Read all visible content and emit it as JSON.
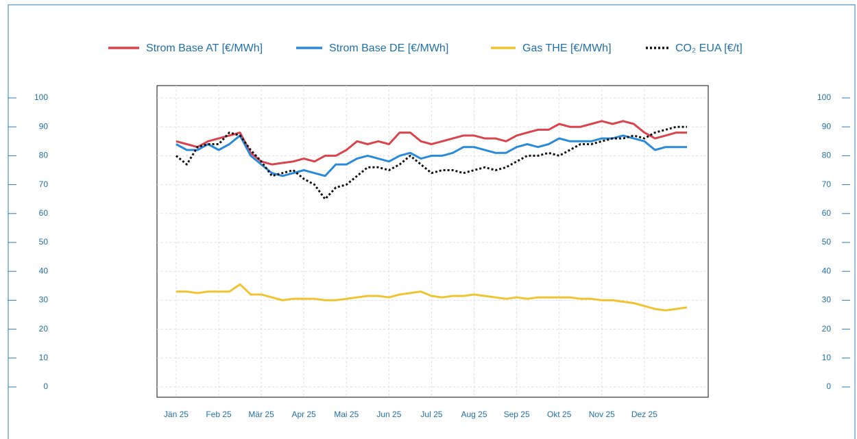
{
  "chart_data": {
    "type": "line",
    "x": [
      0,
      0.25,
      0.5,
      0.75,
      1,
      1.25,
      1.5,
      1.75,
      2,
      2.25,
      2.5,
      2.75,
      3,
      3.25,
      3.5,
      3.75,
      4,
      4.25,
      4.5,
      4.75,
      5,
      5.25,
      5.5,
      5.75,
      6,
      6.25,
      6.5,
      6.75,
      7,
      7.25,
      7.5,
      7.75,
      8,
      8.25,
      8.5,
      8.75,
      9,
      9.25,
      9.5,
      9.75,
      10,
      10.25,
      10.5,
      10.75,
      11,
      11.25,
      11.5,
      11.75,
      12
    ],
    "xlim": [
      -0.45,
      12.5
    ],
    "xticks": [
      {
        "value": 0,
        "label": "Jän 25"
      },
      {
        "value": 1,
        "label": "Feb 25"
      },
      {
        "value": 2,
        "label": "Mär 25"
      },
      {
        "value": 3,
        "label": "Apr 25"
      },
      {
        "value": 4,
        "label": "Mai 25"
      },
      {
        "value": 5,
        "label": "Jun 25"
      },
      {
        "value": 6,
        "label": "Jul 25"
      },
      {
        "value": 7,
        "label": "Aug 25"
      },
      {
        "value": 8,
        "label": "Sep 25"
      },
      {
        "value": 9,
        "label": "Okt 25"
      },
      {
        "value": 10,
        "label": "Nov 25"
      },
      {
        "value": 11,
        "label": "Dez 25"
      }
    ],
    "ylim": [
      0,
      100
    ],
    "yticks": [
      0,
      10,
      20,
      30,
      40,
      50,
      60,
      70,
      80,
      90,
      100
    ],
    "y2lim": [
      0,
      100
    ],
    "y2ticks": [
      0,
      10,
      20,
      30,
      40,
      50,
      60,
      70,
      80,
      90,
      100
    ],
    "grid": true,
    "legend": "top",
    "series": [
      {
        "name": "Strom Base AT [€/MWh]",
        "color": "#d9434b",
        "style": "solid",
        "values": [
          85,
          84,
          83,
          85,
          86,
          87,
          88,
          81,
          78,
          77,
          77.5,
          78,
          79,
          78,
          80,
          80,
          82,
          85,
          84,
          85,
          84,
          88,
          88,
          85,
          84,
          85,
          86,
          87,
          87,
          86,
          86,
          85,
          87,
          88,
          89,
          89,
          91,
          90,
          90,
          91,
          92,
          91,
          92,
          91,
          88,
          86,
          87,
          88,
          88
        ]
      },
      {
        "name": "Strom Base DE [€/MWh]",
        "color": "#2b8ad8",
        "style": "solid",
        "values": [
          84,
          82,
          82,
          84,
          82,
          84,
          87,
          80,
          77,
          74,
          73,
          74,
          75,
          74,
          73,
          77,
          77,
          79,
          80,
          79,
          78,
          80,
          81,
          79,
          80,
          80,
          81,
          83,
          83,
          82,
          81,
          81,
          83,
          84,
          83,
          84,
          86,
          85,
          85,
          85,
          86,
          86,
          87,
          86,
          85,
          82,
          83,
          83,
          83
        ]
      },
      {
        "name": "Gas THE [€/MWh]",
        "color": "#f0c330",
        "style": "solid",
        "values": [
          33,
          33,
          32.5,
          33,
          33,
          33,
          35.5,
          32,
          32,
          31,
          30,
          30.5,
          30.5,
          30.5,
          30,
          30,
          30.5,
          31,
          31.5,
          31.5,
          31,
          32,
          32.5,
          33,
          31.5,
          31,
          31.5,
          31.5,
          32,
          31.5,
          31,
          30.5,
          31,
          30.5,
          31,
          31,
          31,
          31,
          30.5,
          30.5,
          30,
          30,
          29.5,
          29,
          28,
          27,
          26.5,
          27,
          27.5
        ]
      },
      {
        "name": "CO₂ EUA [€/t]",
        "color": "#111111",
        "style": "dotted",
        "values": [
          80,
          77,
          83,
          84,
          84,
          88,
          87,
          82,
          78,
          73,
          74,
          75,
          72,
          70,
          65,
          69,
          70,
          73,
          76,
          76,
          75,
          77,
          80,
          77,
          74,
          75,
          75,
          74,
          75,
          76,
          75,
          76,
          78,
          80,
          80,
          81,
          80,
          82,
          84,
          84,
          85,
          86,
          86,
          87,
          86,
          88,
          89,
          90,
          90
        ]
      }
    ]
  }
}
